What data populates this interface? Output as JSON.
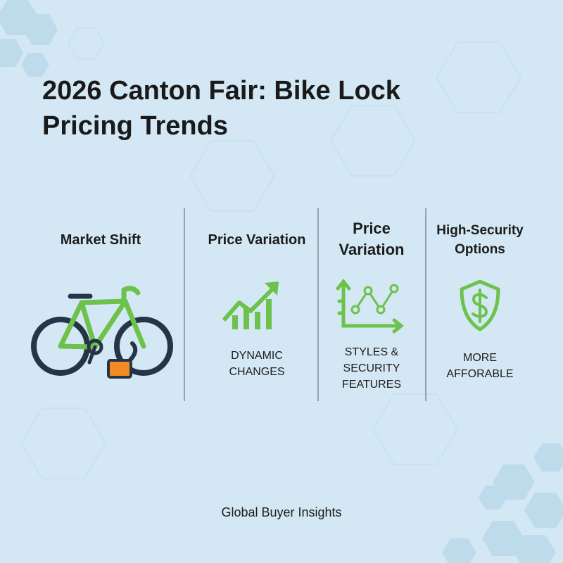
{
  "header": {
    "title": "2026 Canton Fair: Bike Lock Pricing Trends"
  },
  "columns": [
    {
      "heading": [
        "Market Shift"
      ],
      "description": []
    },
    {
      "heading": [
        "Price Variation"
      ],
      "description": [
        "DYNAMIC",
        "CHANGES"
      ]
    },
    {
      "heading": [
        "Price",
        "Variation"
      ],
      "description": [
        "STYLES &",
        "SECURITY",
        "FEATURES"
      ]
    },
    {
      "heading": [
        "High-Security",
        "Options"
      ],
      "description": [
        "MORE",
        "AFFORABLE"
      ]
    }
  ],
  "footer": {
    "text": "Global Buyer Insights"
  }
}
